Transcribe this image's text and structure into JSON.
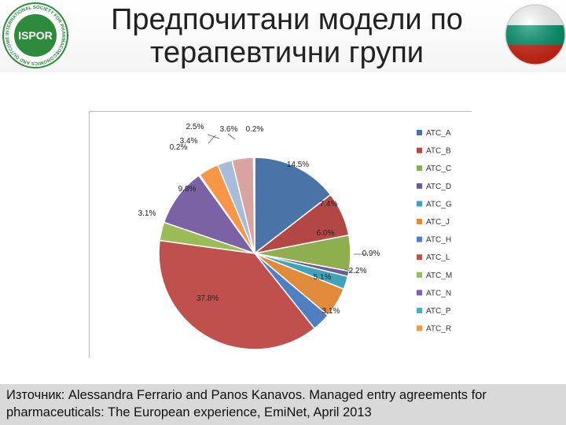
{
  "slide": {
    "title_line1": "Предпочитани модели по",
    "title_line2": "терапевтични групи",
    "source_line1": "Източник: Alessandra Ferrario and Panos Kanavos. Managed entry agreements for",
    "source_line2": "pharmaceuticals: The European experience, EmiNet, April 2013",
    "logo_text": "ISPOR",
    "logo_ring_text": "INTERNATIONAL SOCIETY FOR PHARMACOECONOMICS AND OUTCOMES RESEARCH",
    "flag_colors": [
      "#ffffff",
      "#00966e",
      "#d62612"
    ]
  },
  "chart_data": {
    "type": "pie",
    "start_angle_deg": 0,
    "direction": "clockwise",
    "legend_position": "right",
    "slices": [
      {
        "label": "ATC_A",
        "value": 14.5,
        "display": "14.5%",
        "color": "#4a74a8"
      },
      {
        "label": "ATC_B",
        "value": 7.4,
        "display": "7.4%",
        "color": "#b24745"
      },
      {
        "label": "ATC_C",
        "value": 6.0,
        "display": "6.0%",
        "color": "#8fae4f"
      },
      {
        "label": "ATC_D",
        "value": 0.9,
        "display": "0.9%",
        "color": "#6e5a96"
      },
      {
        "label": "ATC_G",
        "value": 2.2,
        "display": "2.2%",
        "color": "#3fa2ba"
      },
      {
        "label": "ATC_J",
        "value": 5.1,
        "display": "5.1%",
        "color": "#e08a3c"
      },
      {
        "label": "ATC_H",
        "value": 3.1,
        "display": "3.1%",
        "color": "#4f7fc2"
      },
      {
        "label": "ATC_L",
        "value": 37.8,
        "display": "37.8%",
        "color": "#c0504d"
      },
      {
        "label": "ATC_M",
        "value": 3.1,
        "display": "3.1%",
        "color": "#9bbb59"
      },
      {
        "label": "ATC_N",
        "value": 9.8,
        "display": "9.8%",
        "color": "#7b62a4"
      },
      {
        "label": "ATC_P",
        "value": 0.2,
        "display": "0.2%",
        "color": "#4bacc6"
      },
      {
        "label": "ATC_R",
        "value": 3.4,
        "display": "3.4%",
        "color": "#f79646"
      },
      {
        "label": "",
        "value": 2.5,
        "display": "2.5%",
        "color": "#a6bcd9"
      },
      {
        "label": "",
        "value": 3.6,
        "display": "3.6%",
        "color": "#d9a3a2"
      },
      {
        "label": "",
        "value": 0.2,
        "display": "0.2%",
        "color": "#c3d69b"
      }
    ]
  }
}
